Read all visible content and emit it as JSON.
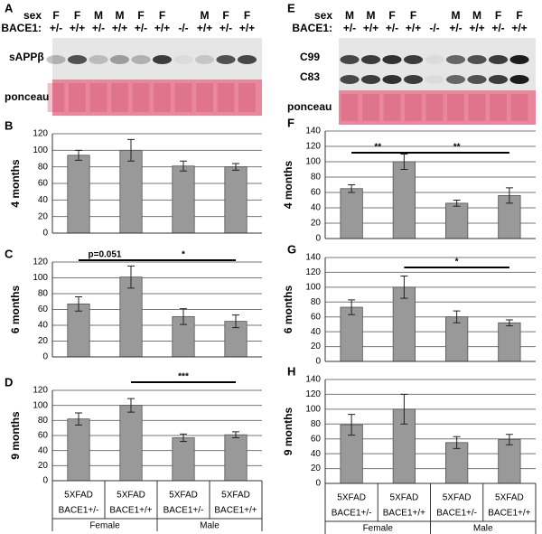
{
  "blots": [
    {
      "panel": "A",
      "sex_label": "sex",
      "genotype_label": "BACE1:",
      "sex": [
        "F",
        "F",
        "M",
        "M",
        "F",
        "F",
        null,
        "M",
        "F",
        "F"
      ],
      "genotype": [
        "+/-",
        "+/+",
        "+/-",
        "+/+",
        "+/-",
        "+/+",
        "-/-",
        "+/+",
        "+/-",
        "+/+"
      ],
      "bands": [
        "sAPPβ"
      ],
      "stain": "ponceau"
    },
    {
      "panel": "E",
      "sex_label": "sex",
      "genotype_label": "BACE1:",
      "sex": [
        "M",
        "M",
        "F",
        "F",
        null,
        "M",
        "M",
        "F",
        "F"
      ],
      "genotype": [
        "+/-",
        "+/+",
        "+/-",
        "+/+",
        "-/-",
        "+/-",
        "+/+",
        "+/-",
        "+/+"
      ],
      "bands": [
        "C99",
        "C83"
      ],
      "stain": "ponceau"
    }
  ],
  "chart_data": [
    {
      "type": "bar",
      "panel": "B",
      "ylabel": "4 months",
      "ylim": [
        0,
        120
      ],
      "yticks": [
        0,
        20,
        40,
        60,
        80,
        100,
        120
      ],
      "grid": true,
      "color": "#999999",
      "values": [
        94,
        100,
        81,
        80
      ],
      "error": [
        6,
        13,
        6,
        4
      ],
      "annotations": []
    },
    {
      "type": "bar",
      "panel": "C",
      "ylabel": "6 months",
      "ylim": [
        0,
        120
      ],
      "yticks": [
        0,
        20,
        40,
        60,
        80,
        100,
        120
      ],
      "grid": true,
      "color": "#999999",
      "values": [
        67,
        101,
        51,
        45
      ],
      "error": [
        9,
        14,
        10,
        8
      ],
      "annotations": [
        "p=0.051",
        "*"
      ]
    },
    {
      "type": "bar",
      "panel": "D",
      "ylabel": "9 months",
      "ylim": [
        0,
        120
      ],
      "yticks": [
        0,
        20,
        40,
        60,
        80,
        100,
        120
      ],
      "grid": true,
      "color": "#999999",
      "values": [
        82,
        100,
        57,
        61
      ],
      "error": [
        8,
        9,
        5,
        4
      ],
      "annotations": [
        "***"
      ],
      "x_table": {
        "line1": [
          "5XFAD",
          "5XFAD",
          "5XFAD",
          "5XFAD"
        ],
        "line2": [
          "BACE1+/-",
          "BACE1+/+",
          "BACE1+/-",
          "BACE1+/+"
        ],
        "groups": [
          "Female",
          "Male"
        ]
      }
    },
    {
      "type": "bar",
      "panel": "F",
      "ylabel": "4 months",
      "ylim": [
        0,
        140
      ],
      "yticks": [
        0,
        20,
        40,
        60,
        80,
        100,
        120,
        140
      ],
      "grid": true,
      "color": "#999999",
      "values": [
        65,
        100,
        46,
        56
      ],
      "error": [
        5,
        10,
        4,
        10
      ],
      "annotations": [
        "**",
        "**"
      ]
    },
    {
      "type": "bar",
      "panel": "G",
      "ylabel": "6 months",
      "ylim": [
        0,
        140
      ],
      "yticks": [
        0,
        20,
        40,
        60,
        80,
        100,
        120,
        140
      ],
      "grid": true,
      "color": "#999999",
      "values": [
        73,
        100,
        60,
        52
      ],
      "error": [
        10,
        15,
        8,
        4
      ],
      "annotations": [
        "*"
      ]
    },
    {
      "type": "bar",
      "panel": "H",
      "ylabel": "9 months",
      "ylim": [
        0,
        140
      ],
      "yticks": [
        0,
        20,
        40,
        60,
        80,
        100,
        120,
        140
      ],
      "grid": true,
      "color": "#999999",
      "values": [
        79,
        100,
        55,
        59
      ],
      "error": [
        14,
        20,
        8,
        7
      ],
      "annotations": [],
      "x_table": {
        "line1": [
          "5XFAD",
          "5XFAD",
          "5XFAD",
          "5XFAD"
        ],
        "line2": [
          "BACE1+/-",
          "BACE1+/+",
          "BACE1+/-",
          "BACE1+/+"
        ],
        "groups": [
          "Female",
          "Male"
        ]
      }
    }
  ]
}
